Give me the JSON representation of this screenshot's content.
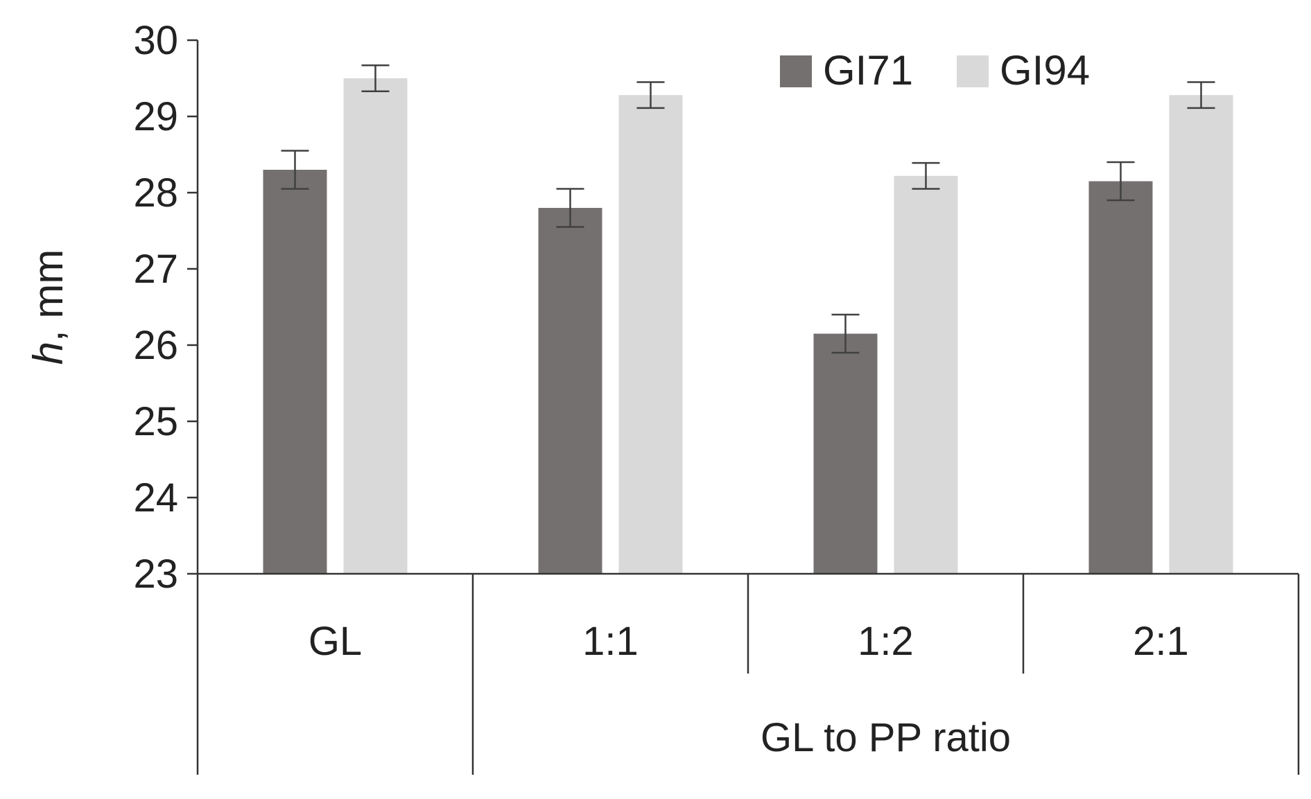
{
  "chart_data": {
    "type": "bar",
    "title": "",
    "ylabel_italic": "h",
    "ylabel_rest": ", mm",
    "ylim": [
      23,
      30
    ],
    "yticks": [
      23,
      24,
      25,
      26,
      27,
      28,
      29,
      30
    ],
    "ytick_labels": [
      "23",
      "24",
      "25",
      "26",
      "27",
      "28",
      "29",
      "30"
    ],
    "categories": [
      "GL",
      "1:1",
      "1:2",
      "2:1"
    ],
    "group_label": "GL to PP ratio",
    "legend_position": "top-right",
    "grid": false,
    "series": [
      {
        "name": "GI71",
        "color": "#757070",
        "values": [
          28.3,
          27.8,
          26.15,
          28.15
        ],
        "errors": [
          0.25,
          0.25,
          0.25,
          0.25
        ]
      },
      {
        "name": "GI94",
        "color": "#d9d9d9",
        "values": [
          29.5,
          29.28,
          28.22,
          29.28
        ],
        "errors": [
          0.17,
          0.17,
          0.17,
          0.17
        ]
      }
    ]
  }
}
